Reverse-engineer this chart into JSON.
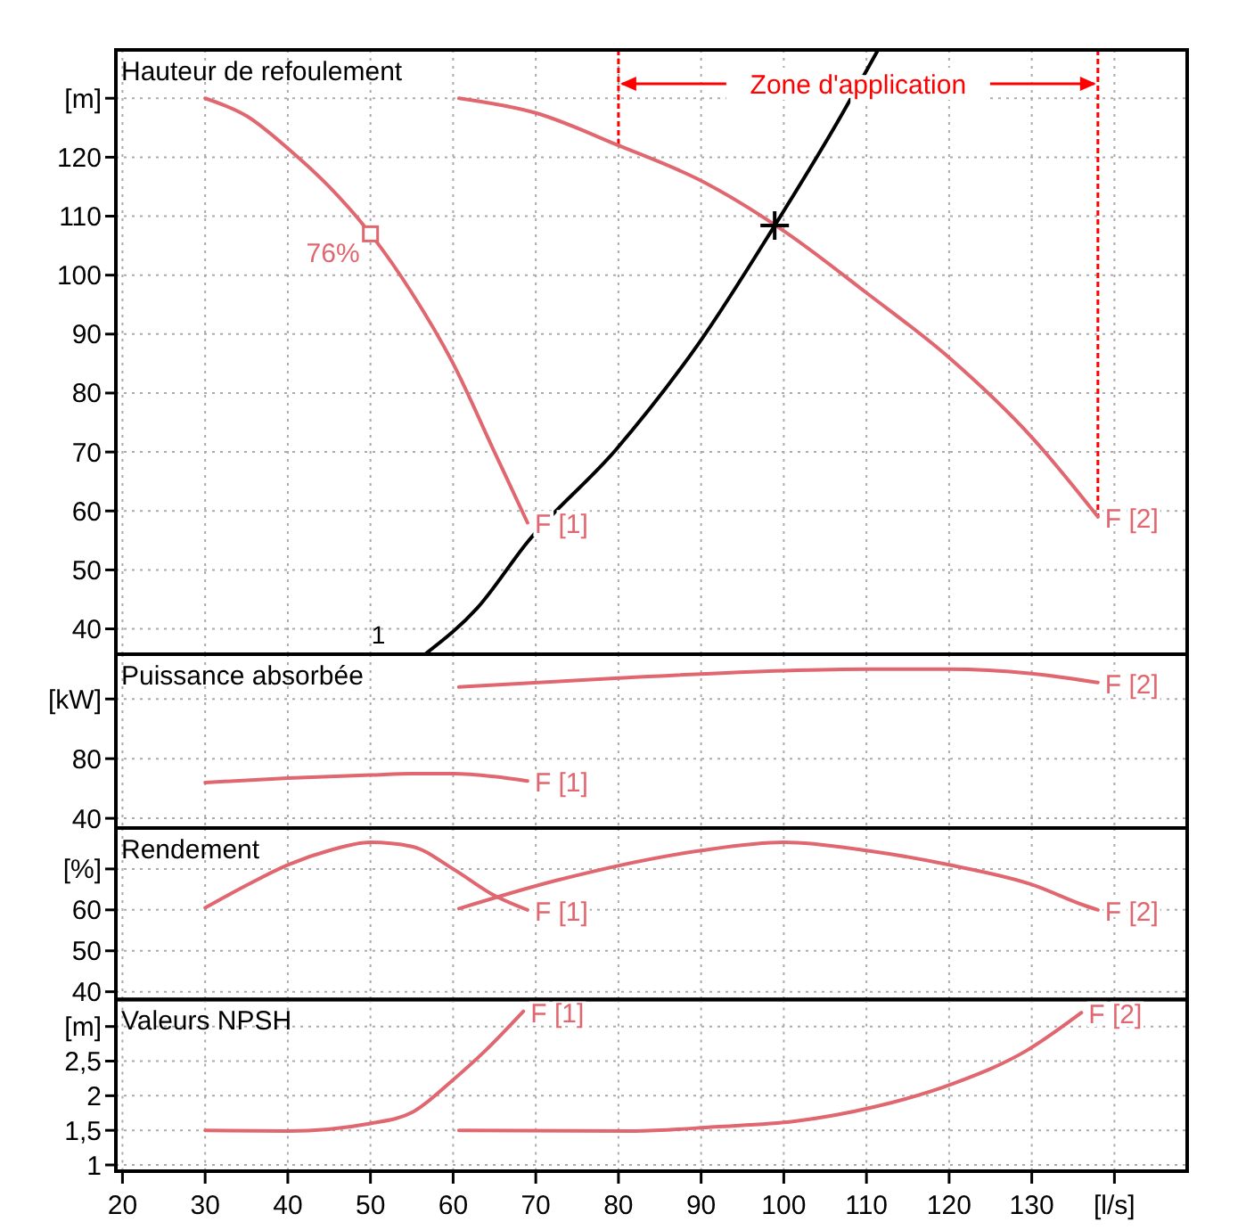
{
  "chart_data": [
    {
      "type": "line",
      "title": "Hauteur de refoulement",
      "xlim": [
        19.2,
        148.8
      ],
      "xticks": [
        20,
        30,
        40,
        50,
        60,
        70,
        80,
        90,
        100,
        110,
        120,
        130,
        140
      ],
      "ylim": [
        35.7,
        138.2
      ],
      "yticks": [
        40,
        50,
        60,
        70,
        80,
        90,
        100,
        110,
        120,
        {
          "value": 130,
          "label": "[m]"
        }
      ],
      "grid": true,
      "tick_labels": "y",
      "annotations": [
        {
          "text": "76%",
          "x": 50,
          "y": 107
        },
        "Zone d'application"
      ],
      "ref_lines": [
        {
          "axis": "x",
          "value": 80,
          "color": "#ff0000",
          "line_style": "dashed"
        },
        {
          "axis": "x",
          "value": 138,
          "color": "#ff0000",
          "line_style": "dashed"
        }
      ],
      "series": [
        {
          "name": "F [1]",
          "color": "#e0676f",
          "x": [
            30,
            35,
            40,
            45,
            50,
            55,
            60,
            65,
            69
          ],
          "values": [
            130,
            127,
            121.5,
            115,
            107,
            97,
            85,
            70,
            58
          ]
        },
        {
          "name": "F [2]",
          "color": "#e0676f",
          "x": [
            60.7,
            70,
            80,
            90,
            100,
            110,
            120,
            130,
            138
          ],
          "values": [
            130,
            127.5,
            122,
            116,
            107.5,
            97,
            86,
            72.5,
            59
          ]
        },
        {
          "name": "1",
          "color": "#000000",
          "x": [
            56.6,
            62.9,
            69.1,
            79.7,
            89.8,
            98.9,
            106.1,
            111.4
          ],
          "values": [
            35.7,
            43.5,
            54.9,
            70.4,
            88.6,
            108.4,
            125,
            138.2
          ]
        },
        {
          "type": "scatter",
          "color": "#e0676f",
          "marker": "square",
          "x": [
            50
          ],
          "values": [
            107
          ]
        },
        {
          "type": "scatter",
          "color": "#000000",
          "marker": "cross",
          "x": [
            98.9
          ],
          "values": [
            108.4
          ]
        }
      ]
    },
    {
      "type": "line",
      "title": "Puissance absorbée",
      "xlim": [
        19.2,
        148.8
      ],
      "xticks": [
        20,
        30,
        40,
        50,
        60,
        70,
        80,
        90,
        100,
        110,
        120,
        130,
        140
      ],
      "ylim": [
        33.5,
        150
      ],
      "yticks": [
        40,
        80,
        {
          "value": 120,
          "label": "[kW]"
        }
      ],
      "grid": true,
      "tick_labels": "y",
      "series": [
        {
          "name": "F [1]",
          "color": "#e0676f",
          "x": [
            30,
            40,
            50,
            55,
            60,
            65,
            69
          ],
          "values": [
            64,
            67,
            69,
            70,
            70,
            68,
            65
          ]
        },
        {
          "name": "F [2]",
          "color": "#e0676f",
          "x": [
            60.7,
            80,
            100,
            110,
            120,
            130,
            138
          ],
          "values": [
            128,
            134,
            139,
            140,
            140,
            137,
            131
          ]
        }
      ]
    },
    {
      "type": "line",
      "title": "Rendement",
      "xlim": [
        19.2,
        148.8
      ],
      "xticks": [
        20,
        30,
        40,
        50,
        60,
        70,
        80,
        90,
        100,
        110,
        120,
        130,
        140
      ],
      "ylim": [
        38.1,
        80
      ],
      "yticks": [
        40,
        50,
        60,
        {
          "value": 70,
          "label": "[%]"
        }
      ],
      "grid": true,
      "tick_labels": "y",
      "series": [
        {
          "name": "F [1]",
          "color": "#e0676f",
          "x": [
            30,
            35,
            40,
            45,
            50,
            55,
            60,
            65,
            69
          ],
          "values": [
            60.5,
            66,
            71,
            74.5,
            76.5,
            75.5,
            70,
            63.5,
            60
          ]
        },
        {
          "name": "F [2]",
          "color": "#e0676f",
          "x": [
            60.7,
            72.5,
            90,
            100,
            110,
            120,
            130,
            136.5,
            138
          ],
          "values": [
            60.3,
            67.2,
            74.5,
            76.5,
            74.5,
            71,
            66.2,
            61,
            60
          ]
        }
      ]
    },
    {
      "type": "line",
      "title": "Valeurs NPSH",
      "xlim": [
        19.2,
        148.8
      ],
      "xticks": [
        20,
        30,
        40,
        50,
        60,
        70,
        80,
        90,
        100,
        110,
        120,
        130,
        {
          "value": 140,
          "label": "[l/s]"
        }
      ],
      "ylim": [
        0.91,
        3.39
      ],
      "yticks": [
        1,
        {
          "value": 1.5,
          "label": "1,5"
        },
        2,
        {
          "value": 2.5,
          "label": "2,5"
        },
        {
          "value": 3,
          "label": "[m]"
        }
      ],
      "grid": true,
      "series": [
        {
          "name": "F [1]",
          "color": "#e0676f",
          "x": [
            30,
            40,
            50,
            55.2,
            60,
            63.8,
            68.5
          ],
          "values": [
            1.5,
            1.49,
            1.6,
            1.77,
            2.23,
            2.64,
            3.22
          ]
        },
        {
          "name": "F [2]",
          "color": "#e0676f",
          "x": [
            60.7,
            82,
            91.7,
            101.3,
            111,
            120.6,
            129.2,
            136
          ],
          "values": [
            1.5,
            1.49,
            1.55,
            1.63,
            1.84,
            2.18,
            2.64,
            3.2
          ]
        }
      ]
    }
  ]
}
